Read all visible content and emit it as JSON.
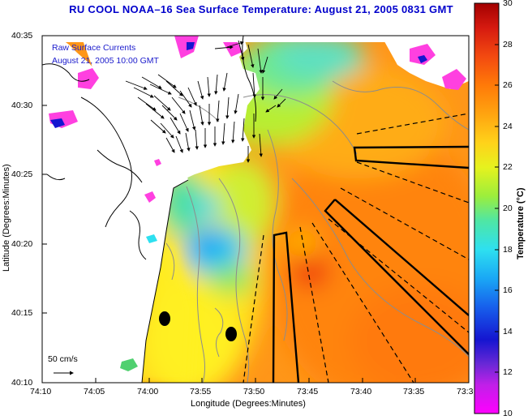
{
  "title": "RU COOL  NOAA–16  Sea Surface Temperature:  August 21, 2005 0831 GMT",
  "inset": {
    "line1": "Raw Surface Currents",
    "line2": "August 21, 2005 10:00 GMT"
  },
  "axes": {
    "xlabel": "Longitude (Degrees:Minutes)",
    "ylabel": "Latitude (Degrees:Minutes)",
    "x_ticks": [
      "74:10",
      "74:05",
      "74:00",
      "73:55",
      "73:50",
      "73:45",
      "73:40",
      "73:35",
      "73:3"
    ],
    "y_ticks": [
      "40:35",
      "40:30",
      "40:25",
      "40:20",
      "40:15",
      "40:10"
    ]
  },
  "scale_label": "50 cm/s",
  "colorbar": {
    "title": "Temperature (°C)",
    "ticks": [
      "30",
      "28",
      "26",
      "24",
      "22",
      "20",
      "18",
      "16",
      "14",
      "12",
      "10"
    ],
    "range": [
      10,
      30
    ],
    "colors": [
      "#ff00ff",
      "#7a20d8",
      "#1515d0",
      "#1a8ef0",
      "#2ed8f0",
      "#50e0a0",
      "#b8ee30",
      "#fff020",
      "#ffb000",
      "#ff7000",
      "#f03a10",
      "#b00000"
    ]
  },
  "map_colors": {
    "cloud": "#ffffff",
    "land": "#ffffff",
    "coast_line": "#000000",
    "bathymetry_line": "#8c8c8c",
    "outlined_area_line": "#000000",
    "vector_color": "#000000"
  },
  "features": {
    "markers": [
      {
        "name": "marker-1",
        "lon": "73:58.8",
        "lat": "40:14.6"
      },
      {
        "name": "marker-2",
        "lon": "73:52.3",
        "lat": "40:13.5"
      }
    ]
  }
}
